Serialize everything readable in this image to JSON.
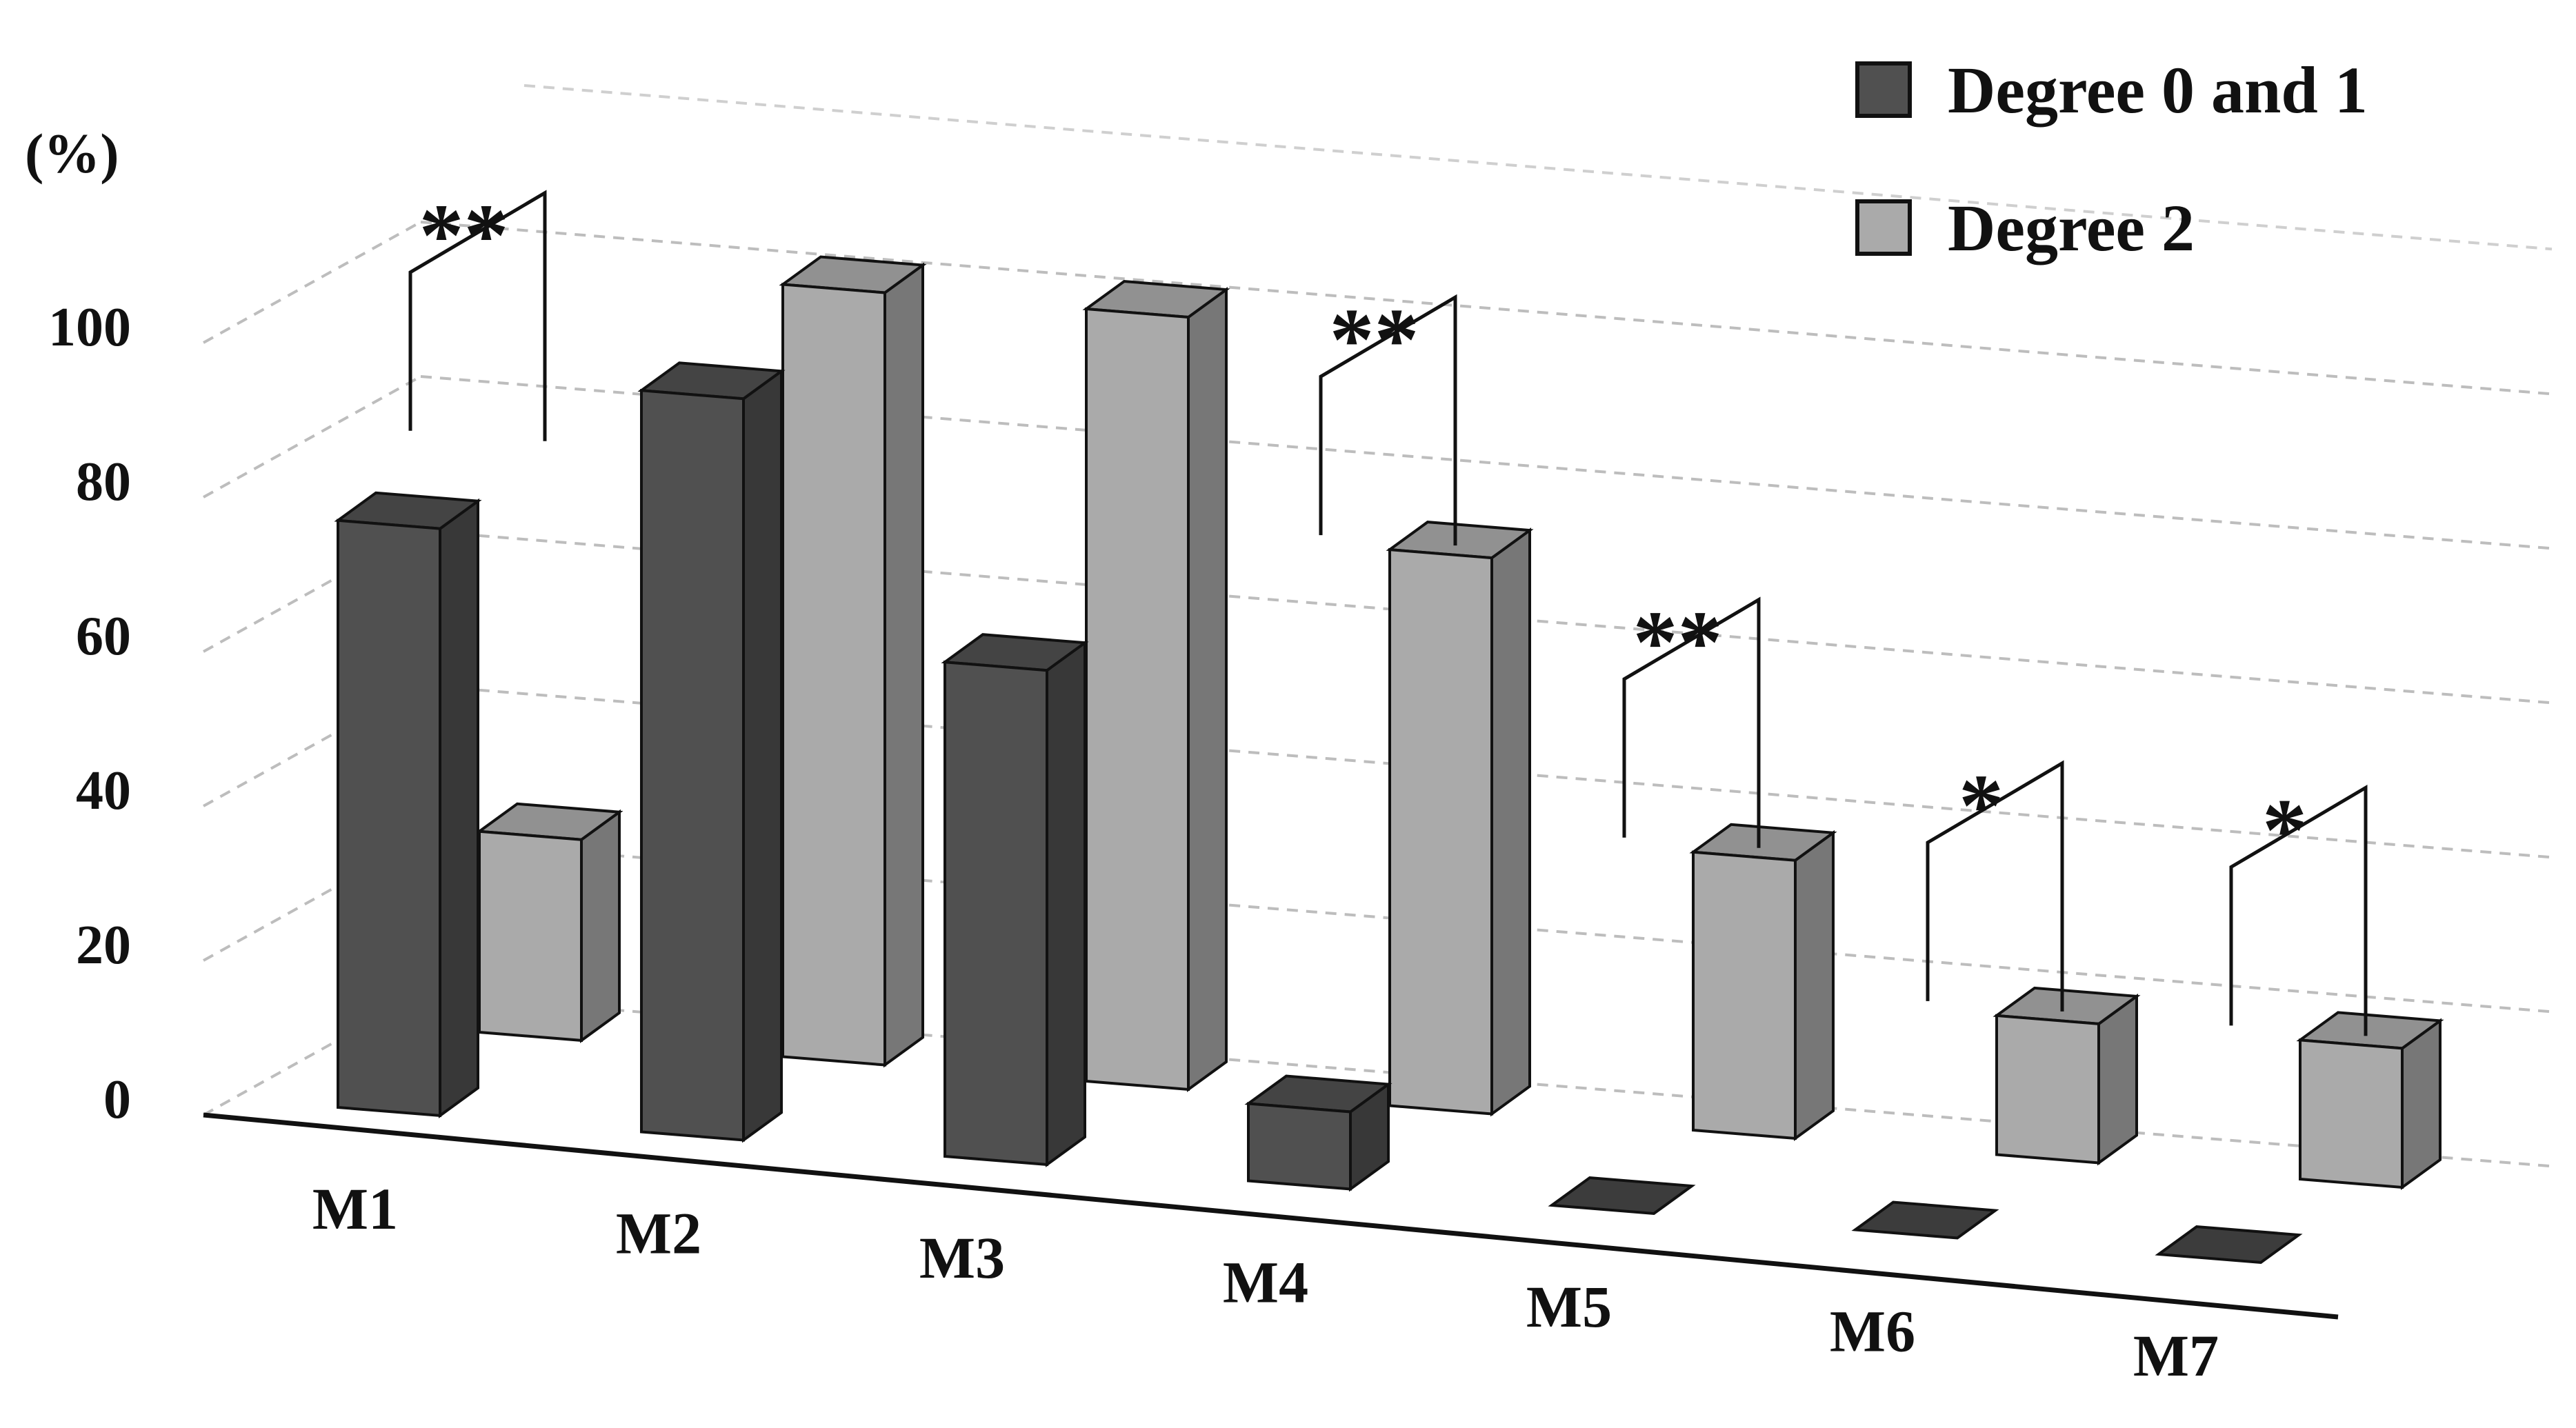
{
  "chart_data": {
    "type": "bar",
    "variant": "3d-clustered",
    "title": "",
    "xlabel": "",
    "ylabel": "(%)",
    "ylim": [
      0,
      100
    ],
    "yticks": [
      "0",
      "20",
      "40",
      "60",
      "80",
      "100"
    ],
    "categories": [
      "M1",
      "M2",
      "M3",
      "M4",
      "M5",
      "M6",
      "M7"
    ],
    "series": [
      {
        "name": "Degree 0 and 1",
        "values": [
          76,
          96,
          64,
          10,
          0,
          0,
          0
        ],
        "color": "#505050"
      },
      {
        "name": "Degree 2",
        "values": [
          26,
          100,
          100,
          72,
          36,
          18,
          18
        ],
        "color": "#aaaaaa"
      }
    ],
    "significance": [
      "**",
      "",
      "",
      "**",
      "**",
      "*",
      "*"
    ],
    "grid": true,
    "legend_position": "top-right"
  }
}
